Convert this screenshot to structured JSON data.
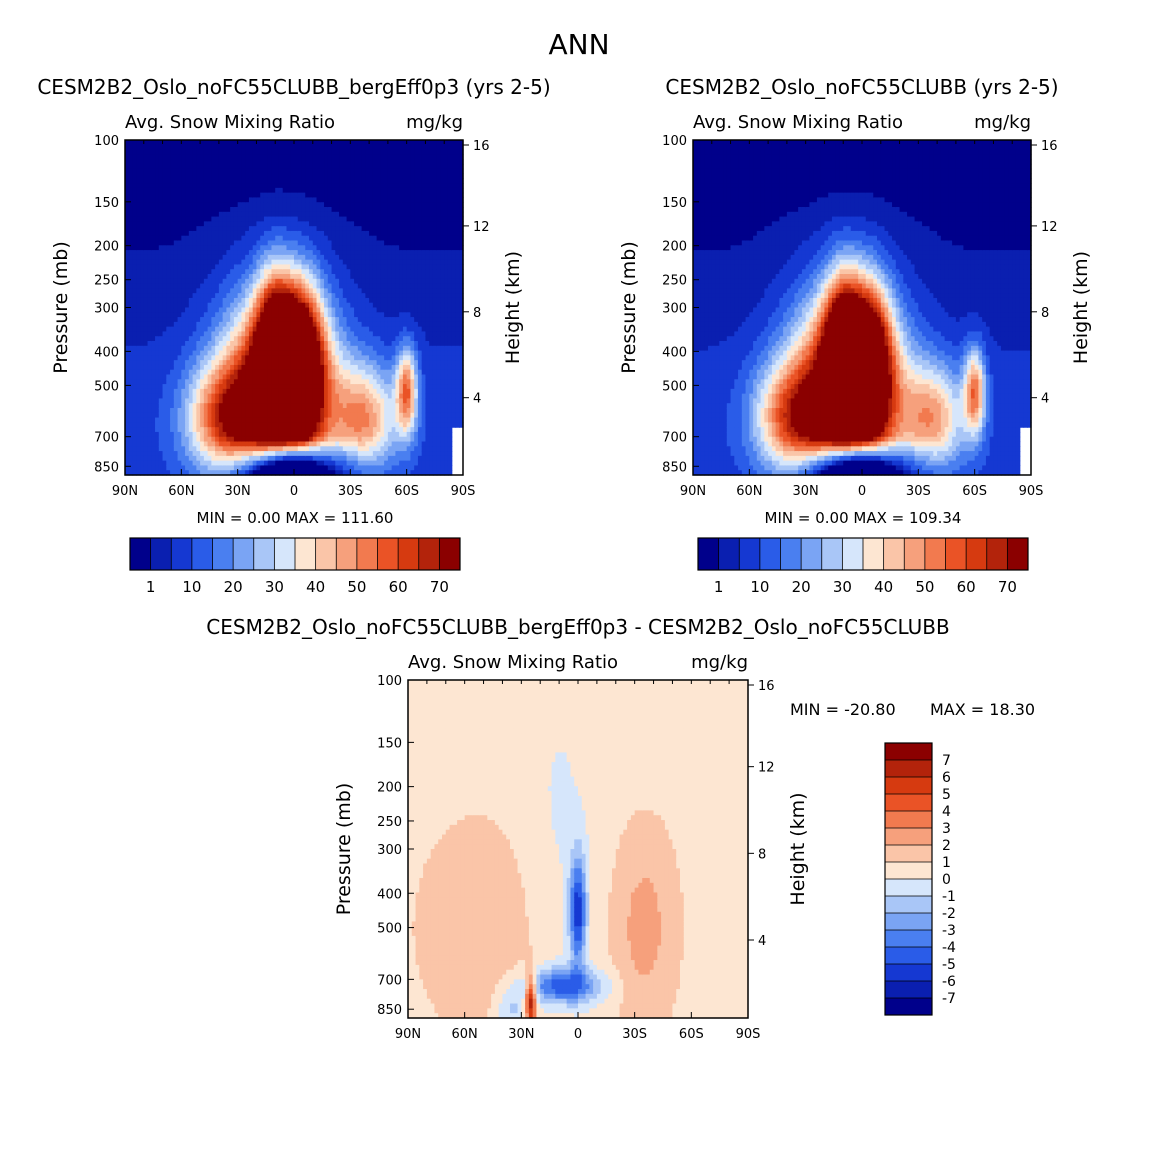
{
  "page_title": "ANN",
  "palettes": {
    "abs": [
      "#00008b",
      "#0a1fb0",
      "#1538d2",
      "#2a5ce8",
      "#4a7ff0",
      "#7aa4f4",
      "#a9c6f7",
      "#d6e6fb",
      "#fde6d2",
      "#fac5a8",
      "#f6a07c",
      "#f27a4f",
      "#ea5326",
      "#d63a10",
      "#b3230b",
      "#8b0000"
    ],
    "diff": [
      "#00008b",
      "#0a1fb0",
      "#1538d2",
      "#2a5ce8",
      "#4a7ff0",
      "#7aa4f4",
      "#a9c6f7",
      "#d6e6fb",
      "#fde6d2",
      "#fac5a8",
      "#f6a07c",
      "#f27a4f",
      "#ea5326",
      "#d63a10",
      "#b3230b",
      "#8b0000"
    ]
  },
  "chart_data": [
    {
      "id": "panel1",
      "type": "heatmap",
      "title": "CESM2B2_Oslo_noFC55CLUBB_bergEff0p3 (yrs 2-5)",
      "subtitle_left": "Avg. Snow Mixing Ratio",
      "subtitle_right": "mg/kg",
      "ylabel": "Pressure (mb)",
      "y2label": "Height (km)",
      "xticks": [
        "90N",
        "60N",
        "30N",
        "0",
        "30S",
        "60S",
        "90S"
      ],
      "xtick_values": [
        90,
        60,
        30,
        0,
        -30,
        -60,
        -90
      ],
      "yticks": [
        100,
        150,
        200,
        250,
        300,
        400,
        500,
        700,
        850
      ],
      "ylim": [
        100,
        1000
      ],
      "y2ticks": [
        16,
        12,
        8,
        4
      ],
      "min_text": "MIN =    0.00",
      "max_text": "MAX =  111.60",
      "min": 0.0,
      "max": 111.6,
      "colorbar_labels": [
        "1",
        "10",
        "20",
        "30",
        "40",
        "50",
        "60",
        "70"
      ],
      "variant": "a"
    },
    {
      "id": "panel2",
      "type": "heatmap",
      "title": "CESM2B2_Oslo_noFC55CLUBB (yrs 2-5)",
      "subtitle_left": "Avg. Snow Mixing Ratio",
      "subtitle_right": "mg/kg",
      "ylabel": "Pressure (mb)",
      "y2label": "Height (km)",
      "xticks": [
        "90N",
        "60N",
        "30N",
        "0",
        "30S",
        "60S",
        "90S"
      ],
      "xtick_values": [
        90,
        60,
        30,
        0,
        -30,
        -60,
        -90
      ],
      "yticks": [
        100,
        150,
        200,
        250,
        300,
        400,
        500,
        700,
        850
      ],
      "ylim": [
        100,
        1000
      ],
      "y2ticks": [
        16,
        12,
        8,
        4
      ],
      "min_text": "MIN =    0.00",
      "max_text": "MAX =  109.34",
      "min": 0.0,
      "max": 109.34,
      "colorbar_labels": [
        "1",
        "10",
        "20",
        "30",
        "40",
        "50",
        "60",
        "70"
      ],
      "variant": "b"
    },
    {
      "id": "panel3",
      "type": "heatmap",
      "title": "CESM2B2_Oslo_noFC55CLUBB_bergEff0p3 - CESM2B2_Oslo_noFC55CLUBB",
      "subtitle_left": "Avg. Snow Mixing Ratio",
      "subtitle_right": "mg/kg",
      "ylabel": "Pressure (mb)",
      "y2label": "Height (km)",
      "xticks": [
        "90N",
        "60N",
        "30N",
        "0",
        "30S",
        "60S",
        "90S"
      ],
      "xtick_values": [
        90,
        60,
        30,
        0,
        -30,
        -60,
        -90
      ],
      "yticks": [
        100,
        150,
        200,
        250,
        300,
        400,
        500,
        700,
        850
      ],
      "ylim": [
        100,
        1000
      ],
      "y2ticks": [
        16,
        12,
        8,
        4
      ],
      "min_text": "MIN = -20.80",
      "max_text": "MAX =   18.30",
      "min": -20.8,
      "max": 18.3,
      "colorbar_labels": [
        "7",
        "6",
        "5",
        "4",
        "3",
        "2",
        "1",
        "0",
        "-1",
        "-2",
        "-3",
        "-4",
        "-5",
        "-6",
        "-7"
      ]
    }
  ]
}
